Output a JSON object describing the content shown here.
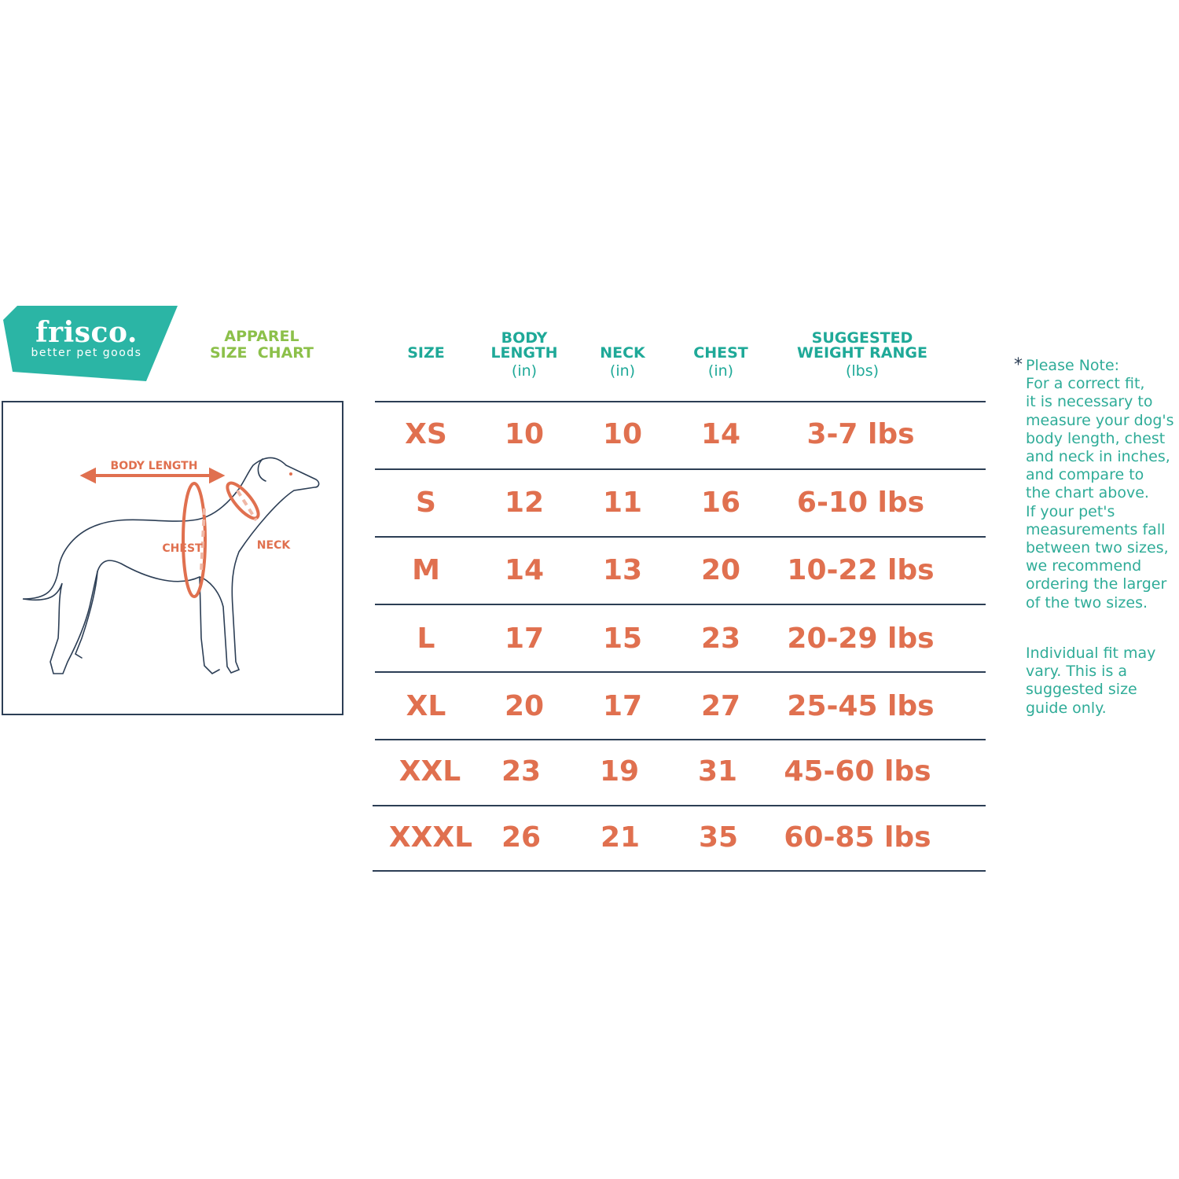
{
  "brand": {
    "name": "frisco.",
    "tagline": "better pet goods",
    "color": "#2bb5a5"
  },
  "title": {
    "line1": "APPAREL",
    "line2": "SIZE  CHART",
    "color": "#8cc04a"
  },
  "diagram": {
    "labels": {
      "body_length": "BODY LENGTH",
      "chest": "CHEST",
      "neck": "NECK"
    },
    "accent": "#e0704f"
  },
  "table": {
    "headers": [
      {
        "lines": [
          "SIZE"
        ],
        "unit": ""
      },
      {
        "lines": [
          "BODY",
          "LENGTH"
        ],
        "unit": "(in)"
      },
      {
        "lines": [
          "NECK"
        ],
        "unit": "(in)"
      },
      {
        "lines": [
          "CHEST"
        ],
        "unit": "(in)"
      },
      {
        "lines": [
          "SUGGESTED",
          "WEIGHT RANGE"
        ],
        "unit": "(lbs)"
      }
    ],
    "rows": [
      [
        "XS",
        "10",
        "10",
        "14",
        "3-7 lbs"
      ],
      [
        "S",
        "12",
        "11",
        "16",
        "6-10 lbs"
      ],
      [
        "M",
        "14",
        "13",
        "20",
        "10-22 lbs"
      ],
      [
        "L",
        "17",
        "15",
        "23",
        "20-29 lbs"
      ],
      [
        "XL",
        "20",
        "17",
        "27",
        "25-45 lbs"
      ],
      [
        "XXL",
        "23",
        "19",
        "31",
        "45-60 lbs"
      ],
      [
        "XXXL",
        "26",
        "21",
        "35",
        "60-85 lbs"
      ]
    ],
    "header_color": "#1fa998",
    "value_color": "#e0704f"
  },
  "note": {
    "asterisk": "*",
    "lines": [
      "Please Note:",
      "For a correct fit,",
      "it is necessary to",
      "measure your dog's",
      "body length, chest",
      "and neck in inches,",
      "and compare to",
      "the chart above.",
      "If your pet's",
      "measurements fall",
      "between two sizes,",
      "we recommend",
      "ordering the larger",
      "of the two sizes."
    ],
    "disclaimer": [
      "Individual fit may",
      "vary. This is a",
      "suggested size",
      "guide only."
    ]
  }
}
